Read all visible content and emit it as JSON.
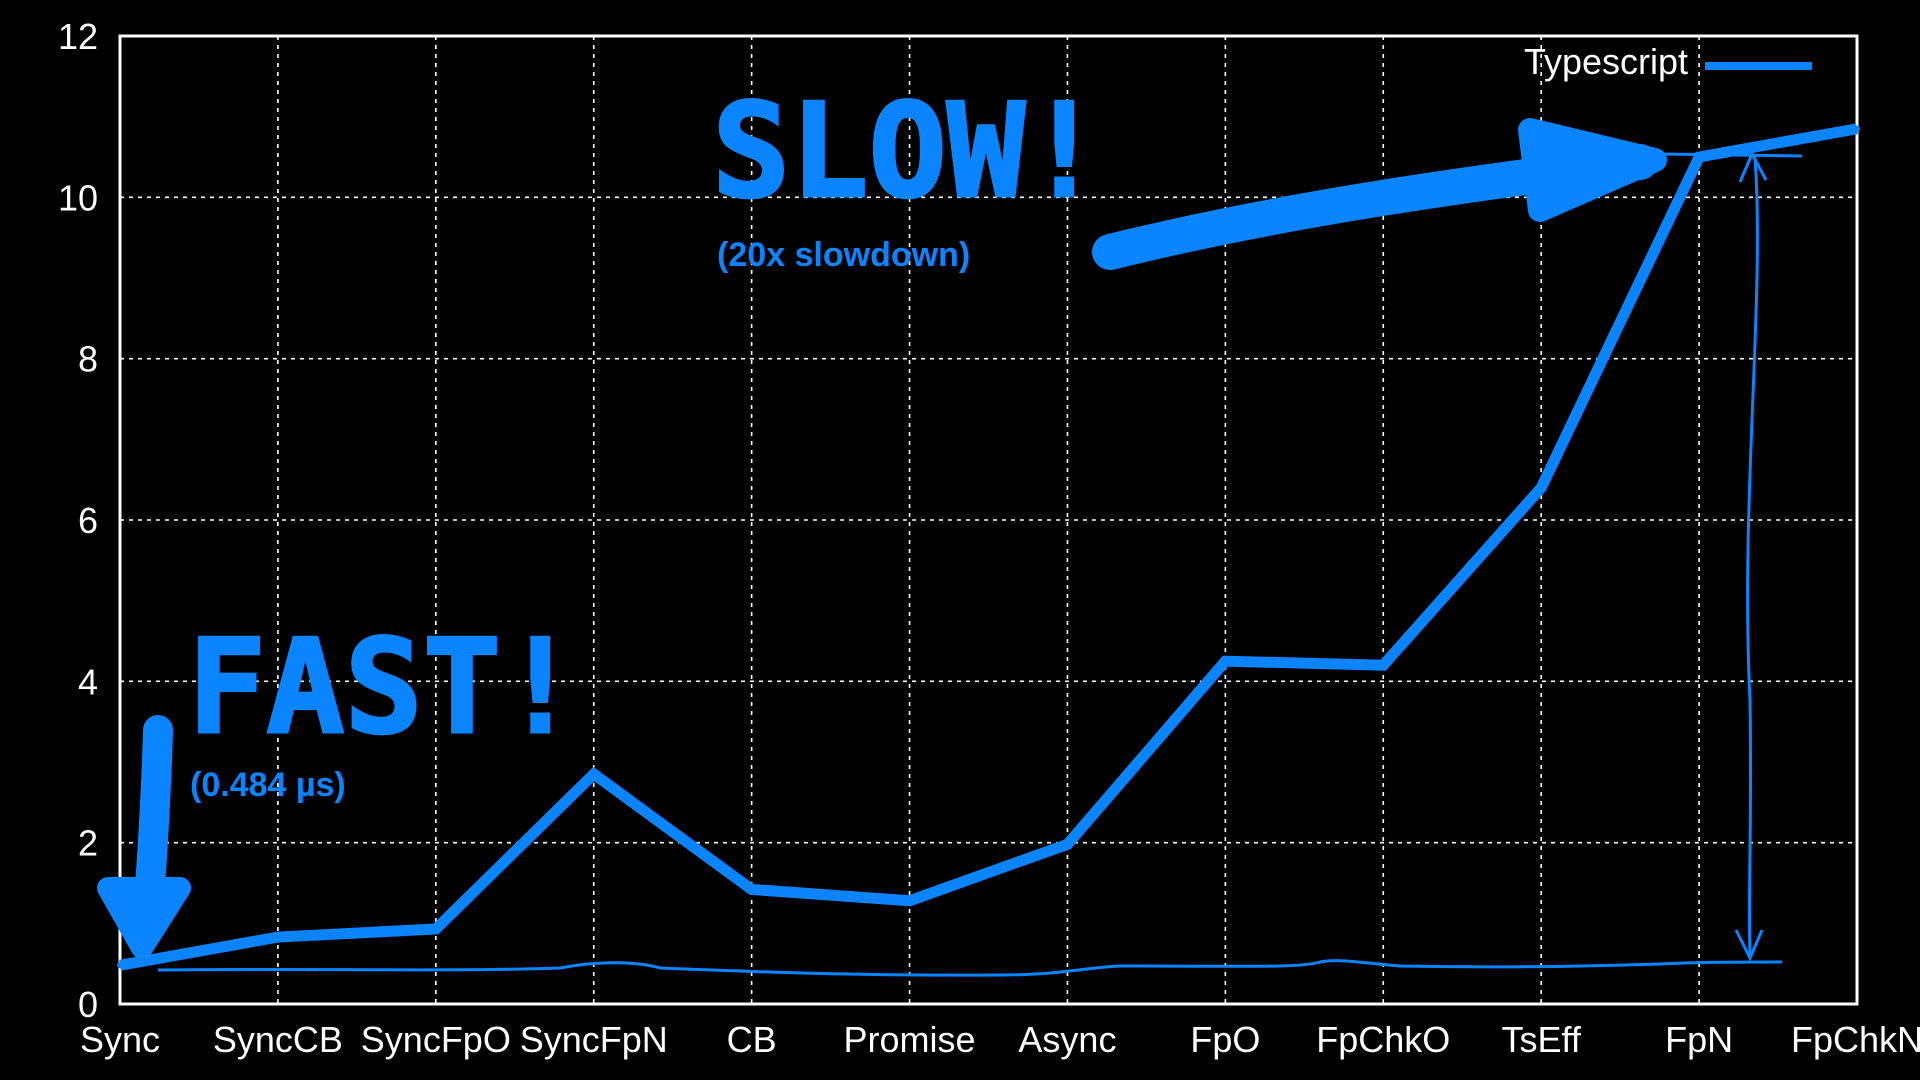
{
  "chart_data": {
    "type": "line",
    "categories": [
      "Sync",
      "SyncCB",
      "SyncFpO",
      "SyncFpN",
      "CB",
      "Promise",
      "Async",
      "FpO",
      "FpChkO",
      "TsEff",
      "FpN",
      "FpChkN"
    ],
    "ylim": [
      0,
      12
    ],
    "yticks": [
      "0",
      "2",
      "4",
      "6",
      "8",
      "10",
      "12"
    ],
    "grid": true,
    "legend_position": "top-right",
    "series": [
      {
        "name": "Typescript",
        "color": "#0a84ff",
        "values": [
          0.48,
          0.83,
          0.93,
          2.85,
          1.42,
          1.28,
          1.98,
          4.25,
          4.2,
          6.4,
          10.5,
          10.85
        ]
      }
    ],
    "annotations": {
      "slow": {
        "title": "SLOW!",
        "note": "(20x slowdown)"
      },
      "fast": {
        "title": "FAST!",
        "note": "(0.484 µs)"
      }
    }
  }
}
